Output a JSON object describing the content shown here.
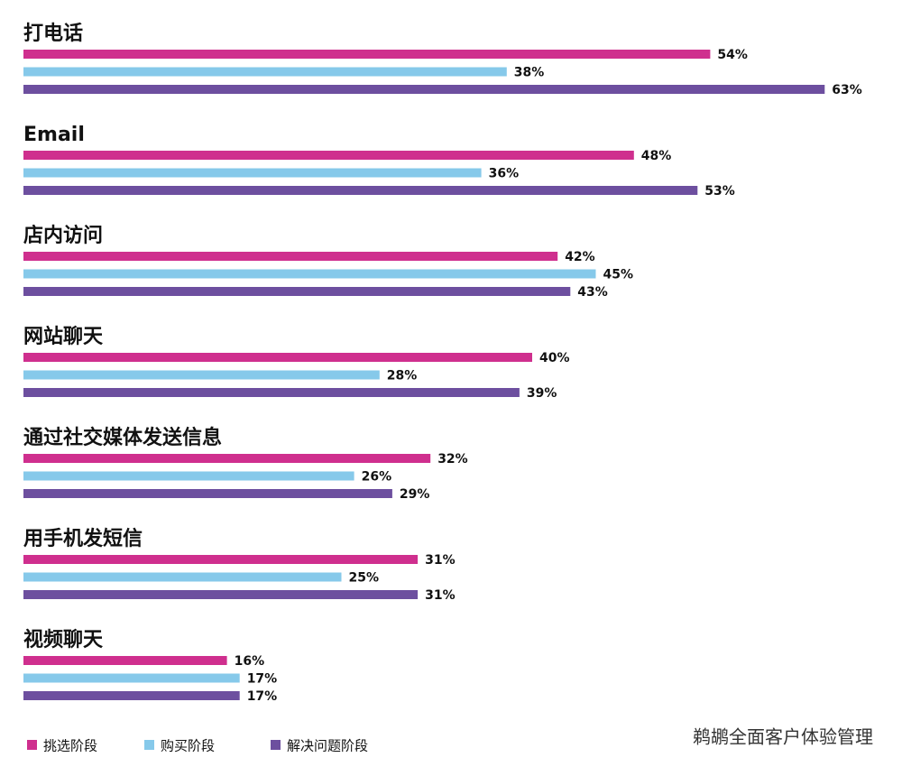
{
  "chart_data": {
    "type": "bar",
    "orientation": "horizontal",
    "categories": [
      "打电话",
      "Email",
      "店内访问",
      "网站聊天",
      "通过社交媒体发送信息",
      "用手机发短信",
      "视频聊天"
    ],
    "series": [
      {
        "name": "挑选阶段",
        "color": "#cf2f8e",
        "values": [
          54,
          48,
          42,
          40,
          32,
          31,
          16
        ],
        "value_labels": [
          "54%",
          "48%",
          "42%",
          "40%",
          "32%",
          "31%",
          "16%"
        ]
      },
      {
        "name": "购买阶段",
        "color": "#86c9ea",
        "values": [
          38,
          36,
          45,
          28,
          26,
          25,
          17
        ],
        "value_labels": [
          "38%",
          "36%",
          "45%",
          "28%",
          "26%",
          "25%",
          "17%"
        ]
      },
      {
        "name": "解决问题阶段",
        "color": "#6d4f9f",
        "values": [
          63,
          53,
          43,
          39,
          29,
          31,
          17
        ],
        "value_labels": [
          "63%",
          "53%",
          "43%",
          "39%",
          "29%",
          "31%",
          "17%"
        ]
      }
    ],
    "legend": "bottom-left",
    "watermark": "鹈鹕全面客户体验管理"
  }
}
